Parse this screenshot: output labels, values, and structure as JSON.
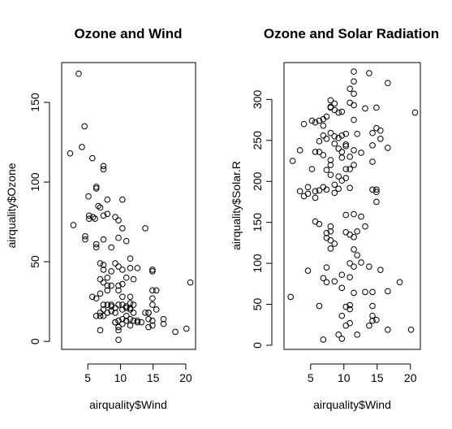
{
  "chart_data": [
    {
      "type": "scatter",
      "title": "Ozone and Wind",
      "xlabel": "airquality$Wind",
      "ylabel": "airquality$Ozone",
      "xlim": [
        1.0,
        21.5
      ],
      "ylim": [
        -5,
        175
      ],
      "xticks": [
        5,
        10,
        15,
        20
      ],
      "yticks": [
        0,
        50,
        100,
        150
      ],
      "grid": false,
      "points": [
        [
          3.6,
          168
        ],
        [
          2.3,
          118
        ],
        [
          4.5,
          135
        ],
        [
          5.7,
          115
        ],
        [
          4.1,
          122
        ],
        [
          2.8,
          73
        ],
        [
          6.3,
          97
        ],
        [
          7.4,
          110
        ],
        [
          7.4,
          108
        ],
        [
          5.1,
          91
        ],
        [
          6.3,
          96
        ],
        [
          8.0,
          89
        ],
        [
          10.3,
          89
        ],
        [
          6.6,
          85
        ],
        [
          6.9,
          84
        ],
        [
          5.2,
          79
        ],
        [
          5.2,
          77
        ],
        [
          5.8,
          78
        ],
        [
          6.1,
          77
        ],
        [
          7.4,
          79
        ],
        [
          8.0,
          80
        ],
        [
          9.2,
          78
        ],
        [
          9.7,
          76
        ],
        [
          4.6,
          66
        ],
        [
          4.6,
          64
        ],
        [
          6.3,
          61
        ],
        [
          6.3,
          59
        ],
        [
          7.4,
          64
        ],
        [
          8.6,
          59
        ],
        [
          9.7,
          65
        ],
        [
          10.3,
          71
        ],
        [
          10.9,
          63
        ],
        [
          13.8,
          71
        ],
        [
          11.5,
          52
        ],
        [
          9.2,
          49
        ],
        [
          8.6,
          44
        ],
        [
          10.3,
          45
        ],
        [
          11.5,
          46
        ],
        [
          9.7,
          47
        ],
        [
          12.6,
          46
        ],
        [
          14.9,
          45
        ],
        [
          14.9,
          44
        ],
        [
          6.9,
          49
        ],
        [
          7.4,
          48
        ],
        [
          7.4,
          45
        ],
        [
          8.0,
          40
        ],
        [
          7.4,
          37
        ],
        [
          8.0,
          35
        ],
        [
          8.6,
          35
        ],
        [
          9.7,
          32
        ],
        [
          10.3,
          36
        ],
        [
          10.9,
          40
        ],
        [
          12.0,
          39
        ],
        [
          14.9,
          32
        ],
        [
          15.5,
          32
        ],
        [
          6.9,
          39
        ],
        [
          9.7,
          35
        ],
        [
          10.3,
          28
        ],
        [
          11.5,
          28
        ],
        [
          11.5,
          24
        ],
        [
          14.9,
          27
        ],
        [
          14.9,
          23
        ],
        [
          10.3,
          20
        ],
        [
          9.2,
          18
        ],
        [
          9.7,
          23
        ],
        [
          10.9,
          21
        ],
        [
          11.5,
          21
        ],
        [
          12.0,
          18
        ],
        [
          12.6,
          13
        ],
        [
          13.8,
          18
        ],
        [
          14.3,
          18
        ],
        [
          14.3,
          14
        ],
        [
          14.9,
          13
        ],
        [
          15.5,
          20
        ],
        [
          16.6,
          14
        ],
        [
          16.6,
          11
        ],
        [
          18.4,
          6
        ],
        [
          20.1,
          8
        ],
        [
          20.7,
          37
        ],
        [
          7.4,
          16
        ],
        [
          8.0,
          18
        ],
        [
          8.6,
          19
        ],
        [
          9.2,
          21
        ],
        [
          9.2,
          12
        ],
        [
          9.7,
          9
        ],
        [
          9.7,
          7
        ],
        [
          9.7,
          1
        ],
        [
          10.3,
          11
        ],
        [
          10.3,
          14
        ],
        [
          10.9,
          16
        ],
        [
          10.9,
          13
        ],
        [
          11.5,
          10
        ],
        [
          11.5,
          14
        ],
        [
          12.0,
          13
        ],
        [
          12.6,
          12
        ],
        [
          13.2,
          12
        ],
        [
          14.3,
          9
        ],
        [
          14.9,
          10
        ],
        [
          8.0,
          23
        ],
        [
          8.6,
          23
        ],
        [
          7.4,
          23
        ],
        [
          6.9,
          16
        ],
        [
          6.3,
          16
        ],
        [
          6.9,
          18
        ],
        [
          7.4,
          20
        ],
        [
          9.2,
          12
        ],
        [
          10.3,
          23
        ],
        [
          11.5,
          20
        ],
        [
          12.0,
          23
        ],
        [
          14.3,
          18
        ],
        [
          9.7,
          13
        ],
        [
          6.9,
          7
        ],
        [
          8.0,
          32
        ],
        [
          6.9,
          30
        ],
        [
          6.3,
          27
        ],
        [
          8.6,
          22
        ],
        [
          5.7,
          28
        ],
        [
          10.9,
          22
        ]
      ]
    },
    {
      "type": "scatter",
      "title": "Ozone and Solar Radiation",
      "xlabel": "airquality$Wind",
      "ylabel": "airquality$Solar.R",
      "xlim": [
        1.0,
        21.5
      ],
      "ylim": [
        -5,
        345
      ],
      "xticks": [
        5,
        10,
        15,
        20
      ],
      "yticks": [
        0,
        50,
        100,
        150,
        200,
        250,
        300
      ],
      "grid": false,
      "points": [
        [
          11.5,
          334
        ],
        [
          11.5,
          322
        ],
        [
          13.8,
          332
        ],
        [
          16.6,
          320
        ],
        [
          10.9,
          313
        ],
        [
          11.5,
          307
        ],
        [
          8.0,
          299
        ],
        [
          8.6,
          295
        ],
        [
          8.0,
          291
        ],
        [
          8.6,
          287
        ],
        [
          9.2,
          284
        ],
        [
          9.7,
          285
        ],
        [
          7.4,
          279
        ],
        [
          6.9,
          276
        ],
        [
          6.3,
          274
        ],
        [
          5.2,
          274
        ],
        [
          5.7,
          272
        ],
        [
          6.9,
          268
        ],
        [
          4.0,
          270
        ],
        [
          8.0,
          290
        ],
        [
          10.9,
          296
        ],
        [
          11.5,
          293
        ],
        [
          13.2,
          289
        ],
        [
          14.9,
          290
        ],
        [
          20.7,
          284
        ],
        [
          11.5,
          275
        ],
        [
          14.9,
          265
        ],
        [
          15.5,
          262
        ],
        [
          14.3,
          259
        ],
        [
          12.0,
          258
        ],
        [
          9.7,
          256
        ],
        [
          9.2,
          253
        ],
        [
          10.3,
          258
        ],
        [
          8.6,
          255
        ],
        [
          8.0,
          259
        ],
        [
          7.4,
          252
        ],
        [
          6.9,
          256
        ],
        [
          6.3,
          249
        ],
        [
          10.3,
          245
        ],
        [
          8.6,
          246
        ],
        [
          9.2,
          240
        ],
        [
          9.7,
          236
        ],
        [
          10.3,
          243
        ],
        [
          11.5,
          238
        ],
        [
          14.3,
          244
        ],
        [
          15.5,
          252
        ],
        [
          16.6,
          241
        ],
        [
          6.3,
          236
        ],
        [
          5.7,
          236
        ],
        [
          3.4,
          238
        ],
        [
          6.9,
          232
        ],
        [
          8.0,
          226
        ],
        [
          9.7,
          229
        ],
        [
          10.9,
          230
        ],
        [
          12.6,
          235
        ],
        [
          14.3,
          224
        ],
        [
          8.0,
          220
        ],
        [
          7.4,
          214
        ],
        [
          8.0,
          208
        ],
        [
          9.2,
          206
        ],
        [
          10.3,
          215
        ],
        [
          10.9,
          215
        ],
        [
          11.5,
          220
        ],
        [
          8.6,
          196
        ],
        [
          9.7,
          201
        ],
        [
          10.3,
          204
        ],
        [
          9.2,
          191
        ],
        [
          8.6,
          186
        ],
        [
          7.4,
          190
        ],
        [
          6.9,
          193
        ],
        [
          6.3,
          189
        ],
        [
          5.7,
          188
        ],
        [
          4.6,
          193
        ],
        [
          4.6,
          185
        ],
        [
          3.4,
          188
        ],
        [
          2.3,
          225
        ],
        [
          5.2,
          215
        ],
        [
          4.0,
          182
        ],
        [
          5.7,
          180
        ],
        [
          10.9,
          192
        ],
        [
          14.3,
          190
        ],
        [
          14.9,
          190
        ],
        [
          14.9,
          187
        ],
        [
          14.9,
          175
        ],
        [
          10.3,
          159
        ],
        [
          11.5,
          160
        ],
        [
          12.6,
          157
        ],
        [
          6.3,
          148
        ],
        [
          5.7,
          151
        ],
        [
          8.0,
          145
        ],
        [
          8.0,
          139
        ],
        [
          7.4,
          137
        ],
        [
          8.0,
          128
        ],
        [
          8.6,
          124
        ],
        [
          7.4,
          131
        ],
        [
          8.0,
          118
        ],
        [
          10.3,
          138
        ],
        [
          10.9,
          135
        ],
        [
          12.0,
          139
        ],
        [
          13.2,
          145
        ],
        [
          11.5,
          132
        ],
        [
          11.5,
          117
        ],
        [
          12.0,
          110
        ],
        [
          12.6,
          101
        ],
        [
          10.9,
          100
        ],
        [
          11.5,
          96
        ],
        [
          13.8,
          96
        ],
        [
          15.5,
          92
        ],
        [
          18.4,
          77
        ],
        [
          4.6,
          91
        ],
        [
          7.4,
          95
        ],
        [
          6.9,
          82
        ],
        [
          7.4,
          77
        ],
        [
          8.6,
          78
        ],
        [
          9.7,
          86
        ],
        [
          9.7,
          70
        ],
        [
          11.5,
          64
        ],
        [
          10.9,
          83
        ],
        [
          14.3,
          65
        ],
        [
          16.6,
          66
        ],
        [
          14.3,
          48
        ],
        [
          14.3,
          36
        ],
        [
          14.9,
          31
        ],
        [
          13.8,
          24
        ],
        [
          10.9,
          49
        ],
        [
          10.3,
          47
        ],
        [
          10.9,
          44
        ],
        [
          9.7,
          36
        ],
        [
          10.3,
          24
        ],
        [
          10.9,
          27
        ],
        [
          12.0,
          13
        ],
        [
          9.2,
          13
        ],
        [
          9.7,
          8
        ],
        [
          6.9,
          7
        ],
        [
          16.6,
          19
        ],
        [
          20.1,
          19
        ],
        [
          2.0,
          59
        ],
        [
          6.3,
          48
        ],
        [
          13.2,
          65
        ],
        [
          14.3,
          30
        ]
      ]
    }
  ]
}
